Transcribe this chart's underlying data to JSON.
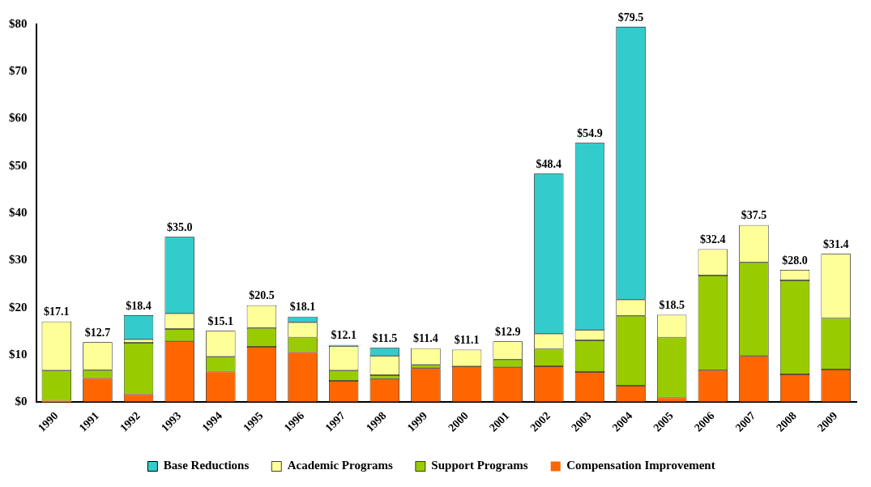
{
  "chart_data": {
    "type": "bar",
    "stacked": true,
    "categories": [
      "1990",
      "1991",
      "1992",
      "1993",
      "1994",
      "1995",
      "1996",
      "1997",
      "1998",
      "1999",
      "2000",
      "2001",
      "2002",
      "2003",
      "2004",
      "2005",
      "2006",
      "2007",
      "2008",
      "2009"
    ],
    "series": [
      {
        "name": "Compensation Improvement",
        "color": "#ff6600",
        "values": [
          0.3,
          5.1,
          1.7,
          12.9,
          6.5,
          11.7,
          10.6,
          4.5,
          4.9,
          7.2,
          7.6,
          7.4,
          7.6,
          6.4,
          3.5,
          1.0,
          6.8,
          9.8,
          5.9,
          6.9
        ]
      },
      {
        "name": "Support Programs",
        "color": "#99cc00",
        "values": [
          6.4,
          1.7,
          10.9,
          2.6,
          3.1,
          4.0,
          3.1,
          2.2,
          0.8,
          0.7,
          0.1,
          1.6,
          3.7,
          6.7,
          14.8,
          12.7,
          20.0,
          19.8,
          19.9,
          10.9
        ]
      },
      {
        "name": "Academic Programs",
        "color": "#ffff99",
        "values": [
          10.4,
          5.9,
          0.7,
          3.3,
          5.5,
          4.8,
          3.2,
          5.2,
          4.1,
          3.5,
          3.4,
          3.9,
          3.2,
          2.2,
          3.4,
          4.8,
          5.6,
          7.9,
          2.2,
          13.6
        ]
      },
      {
        "name": "Base Reductions",
        "color": "#33cccc",
        "values": [
          null,
          null,
          5.1,
          16.2,
          null,
          null,
          1.2,
          0.2,
          1.7,
          null,
          null,
          null,
          33.9,
          39.6,
          57.8,
          null,
          null,
          null,
          null,
          null
        ]
      }
    ],
    "totals": [
      "$17.1",
      "$12.7",
      "$18.4",
      "$35.0",
      "$15.1",
      "$20.5",
      "$18.1",
      "$12.1",
      "$11.5",
      "$11.4",
      "$11.1",
      "$12.9",
      "$48.4",
      "$54.9",
      "$79.5",
      "$18.5",
      "$32.4",
      "$37.5",
      "$28.0",
      "$31.4"
    ],
    "ylim": [
      0,
      80
    ],
    "yticks": [
      {
        "value": 0,
        "label": "$0"
      },
      {
        "value": 10,
        "label": "$10"
      },
      {
        "value": 20,
        "label": "$20"
      },
      {
        "value": 30,
        "label": "$30"
      },
      {
        "value": 40,
        "label": "$40"
      },
      {
        "value": 50,
        "label": "$50"
      },
      {
        "value": 60,
        "label": "$60"
      },
      {
        "value": 70,
        "label": "$70"
      },
      {
        "value": 80,
        "label": "$80"
      }
    ],
    "grid": false,
    "legend": "bottom"
  }
}
